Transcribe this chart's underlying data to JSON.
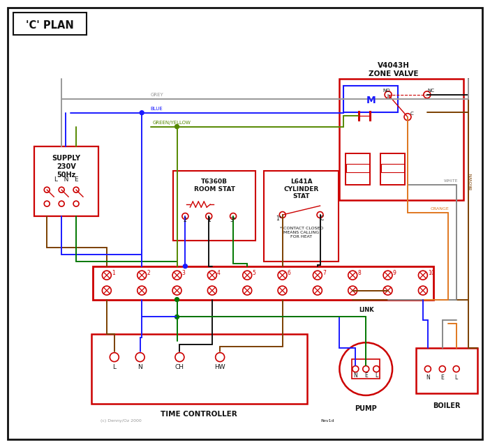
{
  "title": "'C' PLAN",
  "bg_color": "#ffffff",
  "red": "#cc0000",
  "blue": "#1a1aff",
  "green": "#007700",
  "grey": "#999999",
  "brown": "#7B3F00",
  "orange": "#E07820",
  "black": "#111111",
  "gy": "#558800",
  "white_wire": "#888888",
  "zone_valve_title": "V4043H\nZONE VALVE",
  "supply_text": "SUPPLY\n230V\n50Hz",
  "room_stat_title": "T6360B\nROOM STAT",
  "cyl_stat_title": "L641A\nCYLINDER\nSTAT",
  "time_ctrl_title": "TIME CONTROLLER",
  "pump_title": "PUMP",
  "boiler_title": "BOILER",
  "link_text": "LINK",
  "contact_note": "* CONTACT CLOSED\nMEANS CALLING\nFOR HEAT",
  "copyright": "(c) Denny/Oz 2000",
  "rev": "Rev1d"
}
